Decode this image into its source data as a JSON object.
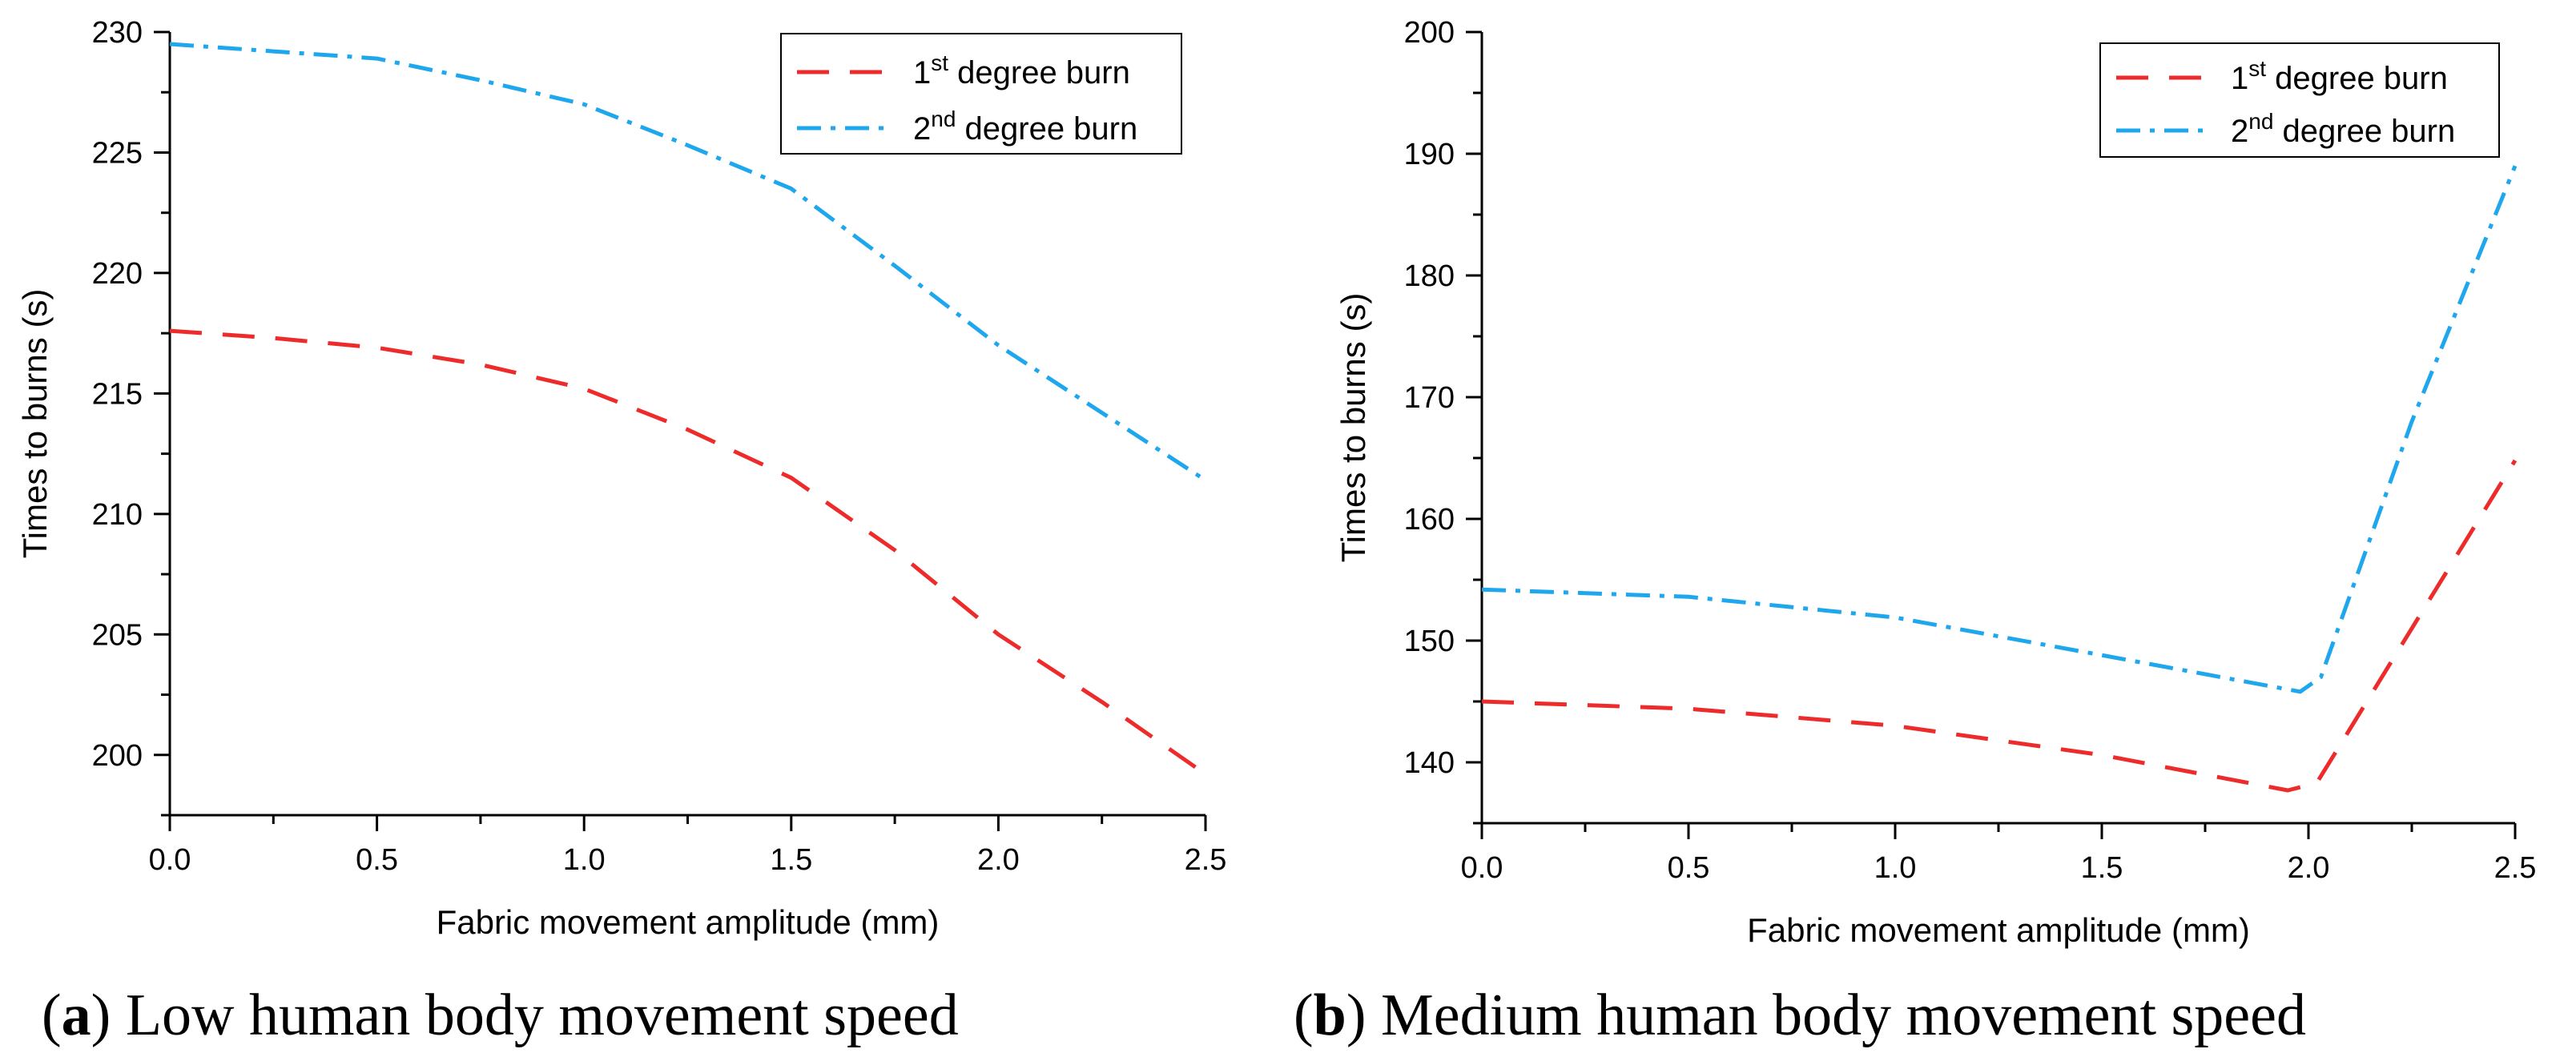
{
  "chart_data": [
    {
      "type": "line",
      "title": "",
      "xlabel": "Fabric movement amplitude (mm)",
      "ylabel": "Times to burns (s)",
      "xlim": [
        0,
        2.5
      ],
      "ylim": [
        197.5,
        230
      ],
      "xticks": [
        0,
        0.5,
        1,
        1.5,
        2,
        2.5
      ],
      "xtick_labels": [
        "0.0",
        "0.5",
        "1.0",
        "1.5",
        "2.0",
        "2.5"
      ],
      "yticks": [
        200,
        205,
        210,
        215,
        220,
        225,
        230
      ],
      "ytick_labels": [
        "200",
        "205",
        "210",
        "215",
        "220",
        "225",
        "230"
      ],
      "legend_position": "top-right",
      "caption_letter": "a",
      "caption_text": " Low human body movement speed",
      "series": [
        {
          "name": "1st degree burn",
          "name_base": "1",
          "name_sup": "st",
          "name_rest": " degree burn",
          "color": "#ee2b2b",
          "dash": "long-dash",
          "x": [
            0,
            0.25,
            0.5,
            0.75,
            1.0,
            1.25,
            1.5,
            1.75,
            2.0,
            2.25,
            2.5
          ],
          "y": [
            217.6,
            217.3,
            216.9,
            216.2,
            215.2,
            213.5,
            211.5,
            208.5,
            205.0,
            202.2,
            199.2
          ]
        },
        {
          "name": "2nd degree burn",
          "name_base": "2",
          "name_sup": "nd",
          "name_rest": " degree burn",
          "color": "#1fa7ee",
          "dash": "dash-dot",
          "x": [
            0,
            0.25,
            0.5,
            0.75,
            1.0,
            1.25,
            1.5,
            1.75,
            2.0,
            2.25,
            2.5
          ],
          "y": [
            229.5,
            229.2,
            228.9,
            228.0,
            227.0,
            225.3,
            223.5,
            220.3,
            217.0,
            214.2,
            211.4
          ]
        }
      ]
    },
    {
      "type": "line",
      "title": "",
      "xlabel": "Fabric movement amplitude (mm)",
      "ylabel": "Times to burns (s)",
      "xlim": [
        0,
        2.5
      ],
      "ylim": [
        135,
        200
      ],
      "xticks": [
        0,
        0.5,
        1,
        1.5,
        2,
        2.5
      ],
      "xtick_labels": [
        "0.0",
        "0.5",
        "1.0",
        "1.5",
        "2.0",
        "2.5"
      ],
      "yticks": [
        140,
        150,
        160,
        170,
        180,
        190,
        200
      ],
      "ytick_labels": [
        "140",
        "150",
        "160",
        "170",
        "180",
        "190",
        "200"
      ],
      "legend_position": "top-right",
      "caption_letter": "b",
      "caption_text": " Medium human body movement speed",
      "series": [
        {
          "name": "1st degree burn",
          "name_base": "1",
          "name_sup": "st",
          "name_rest": " degree burn",
          "color": "#ee2b2b",
          "dash": "long-dash",
          "x": [
            0,
            0.5,
            1.0,
            1.5,
            1.95,
            2.02,
            2.25,
            2.5
          ],
          "y": [
            145.0,
            144.4,
            143.0,
            140.6,
            137.7,
            138.3,
            151.0,
            164.8
          ]
        },
        {
          "name": "2nd degree burn",
          "name_base": "2",
          "name_sup": "nd",
          "name_rest": " degree burn",
          "color": "#1fa7ee",
          "dash": "dash-dot",
          "x": [
            0,
            0.5,
            1.0,
            1.5,
            1.98,
            2.03,
            2.25,
            2.5
          ],
          "y": [
            154.2,
            153.6,
            151.9,
            148.8,
            145.8,
            147.0,
            168.0,
            189.0
          ]
        }
      ]
    }
  ]
}
